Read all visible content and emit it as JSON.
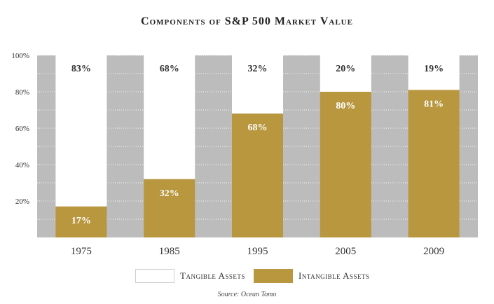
{
  "chart_data": {
    "type": "bar",
    "stacked": true,
    "title": "Components of S&P 500 Market Value",
    "categories": [
      "1975",
      "1985",
      "1995",
      "2005",
      "2009"
    ],
    "series": [
      {
        "name": "Intangible Assets",
        "values": [
          17,
          32,
          68,
          80,
          81
        ],
        "labels": [
          "17%",
          "32%",
          "68%",
          "80%",
          "81%"
        ],
        "color": "#b8973f"
      },
      {
        "name": "Tangible Assets",
        "values": [
          83,
          68,
          32,
          20,
          19
        ],
        "labels": [
          "83%",
          "68%",
          "32%",
          "20%",
          "19%"
        ],
        "color": "#ffffff"
      }
    ],
    "yticks": [
      {
        "value": 20,
        "label": "20%"
      },
      {
        "value": 40,
        "label": "40%"
      },
      {
        "value": 60,
        "label": "60%"
      },
      {
        "value": 80,
        "label": "80%"
      },
      {
        "value": 100,
        "label": "100%"
      }
    ],
    "ylim": [
      0,
      100
    ],
    "background_color": "#bcbcbc",
    "grid": true,
    "legend_position": "bottom"
  },
  "source": "Source: Ocean Tomo"
}
